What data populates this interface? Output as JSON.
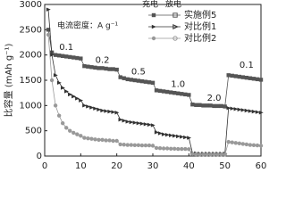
{
  "chart_data": {
    "type": "line",
    "ylabel": "比容量 (mAh g⁻¹)",
    "note": "电流密度：A g⁻¹",
    "rate_labels": [
      "0.1",
      "0.2",
      "0.5",
      "1.0",
      "2.0",
      "0.1"
    ],
    "legend_headers": [
      "充电",
      "放电"
    ],
    "x": [
      1,
      2,
      3,
      4,
      5,
      6,
      7,
      8,
      9,
      10,
      11,
      12,
      13,
      14,
      15,
      16,
      17,
      18,
      19,
      20,
      21,
      22,
      23,
      24,
      25,
      26,
      27,
      28,
      29,
      30,
      31,
      32,
      33,
      34,
      35,
      36,
      37,
      38,
      39,
      40,
      41,
      42,
      43,
      44,
      45,
      46,
      47,
      48,
      49,
      50,
      51,
      52,
      53,
      54,
      55,
      56,
      57,
      58,
      59,
      60
    ],
    "series": [
      {
        "name": "实施例5",
        "color": "#555555",
        "marker": "square",
        "values": [
          2500,
          2050,
          2000,
          1990,
          1980,
          1970,
          1960,
          1950,
          1940,
          1930,
          1780,
          1770,
          1760,
          1750,
          1740,
          1740,
          1730,
          1720,
          1720,
          1710,
          1560,
          1540,
          1520,
          1510,
          1500,
          1490,
          1480,
          1470,
          1460,
          1450,
          1300,
          1290,
          1280,
          1270,
          1260,
          1250,
          1240,
          1230,
          1220,
          1210,
          1020,
          1010,
          1010,
          1000,
          1000,
          1000,
          990,
          990,
          990,
          980,
          1600,
          1590,
          1580,
          1570,
          1560,
          1550,
          1540,
          1530,
          1520,
          1510
        ]
      },
      {
        "name": "对比例1",
        "color": "#333333",
        "marker": "triangle",
        "values": [
          2900,
          2000,
          1600,
          1450,
          1350,
          1280,
          1220,
          1180,
          1140,
          1100,
          1000,
          980,
          960,
          940,
          920,
          900,
          890,
          880,
          870,
          860,
          720,
          700,
          680,
          670,
          660,
          650,
          640,
          630,
          620,
          610,
          470,
          450,
          430,
          420,
          410,
          400,
          390,
          380,
          370,
          360,
          60,
          55,
          50,
          50,
          50,
          50,
          50,
          50,
          50,
          50,
          950,
          940,
          930,
          920,
          910,
          900,
          890,
          880,
          870,
          860
        ]
      },
      {
        "name": "对比例2",
        "color": "#999999",
        "marker": "circle",
        "values": [
          2400,
          1500,
          1000,
          800,
          650,
          560,
          500,
          460,
          430,
          400,
          360,
          350,
          340,
          330,
          320,
          320,
          310,
          310,
          300,
          300,
          230,
          225,
          220,
          220,
          215,
          215,
          210,
          210,
          210,
          205,
          160,
          155,
          150,
          150,
          145,
          145,
          140,
          140,
          140,
          135,
          40,
          35,
          30,
          30,
          30,
          30,
          30,
          30,
          30,
          30,
          280,
          270,
          260,
          250,
          240,
          230,
          220,
          215,
          210,
          205
        ]
      }
    ],
    "xlim": [
      0,
      60
    ],
    "xticks": [
      0,
      10,
      20,
      30,
      40,
      50,
      60
    ],
    "ylim": [
      0,
      3000
    ],
    "yticks": [
      0,
      500,
      1000,
      1500,
      2000,
      2500,
      3000
    ]
  }
}
